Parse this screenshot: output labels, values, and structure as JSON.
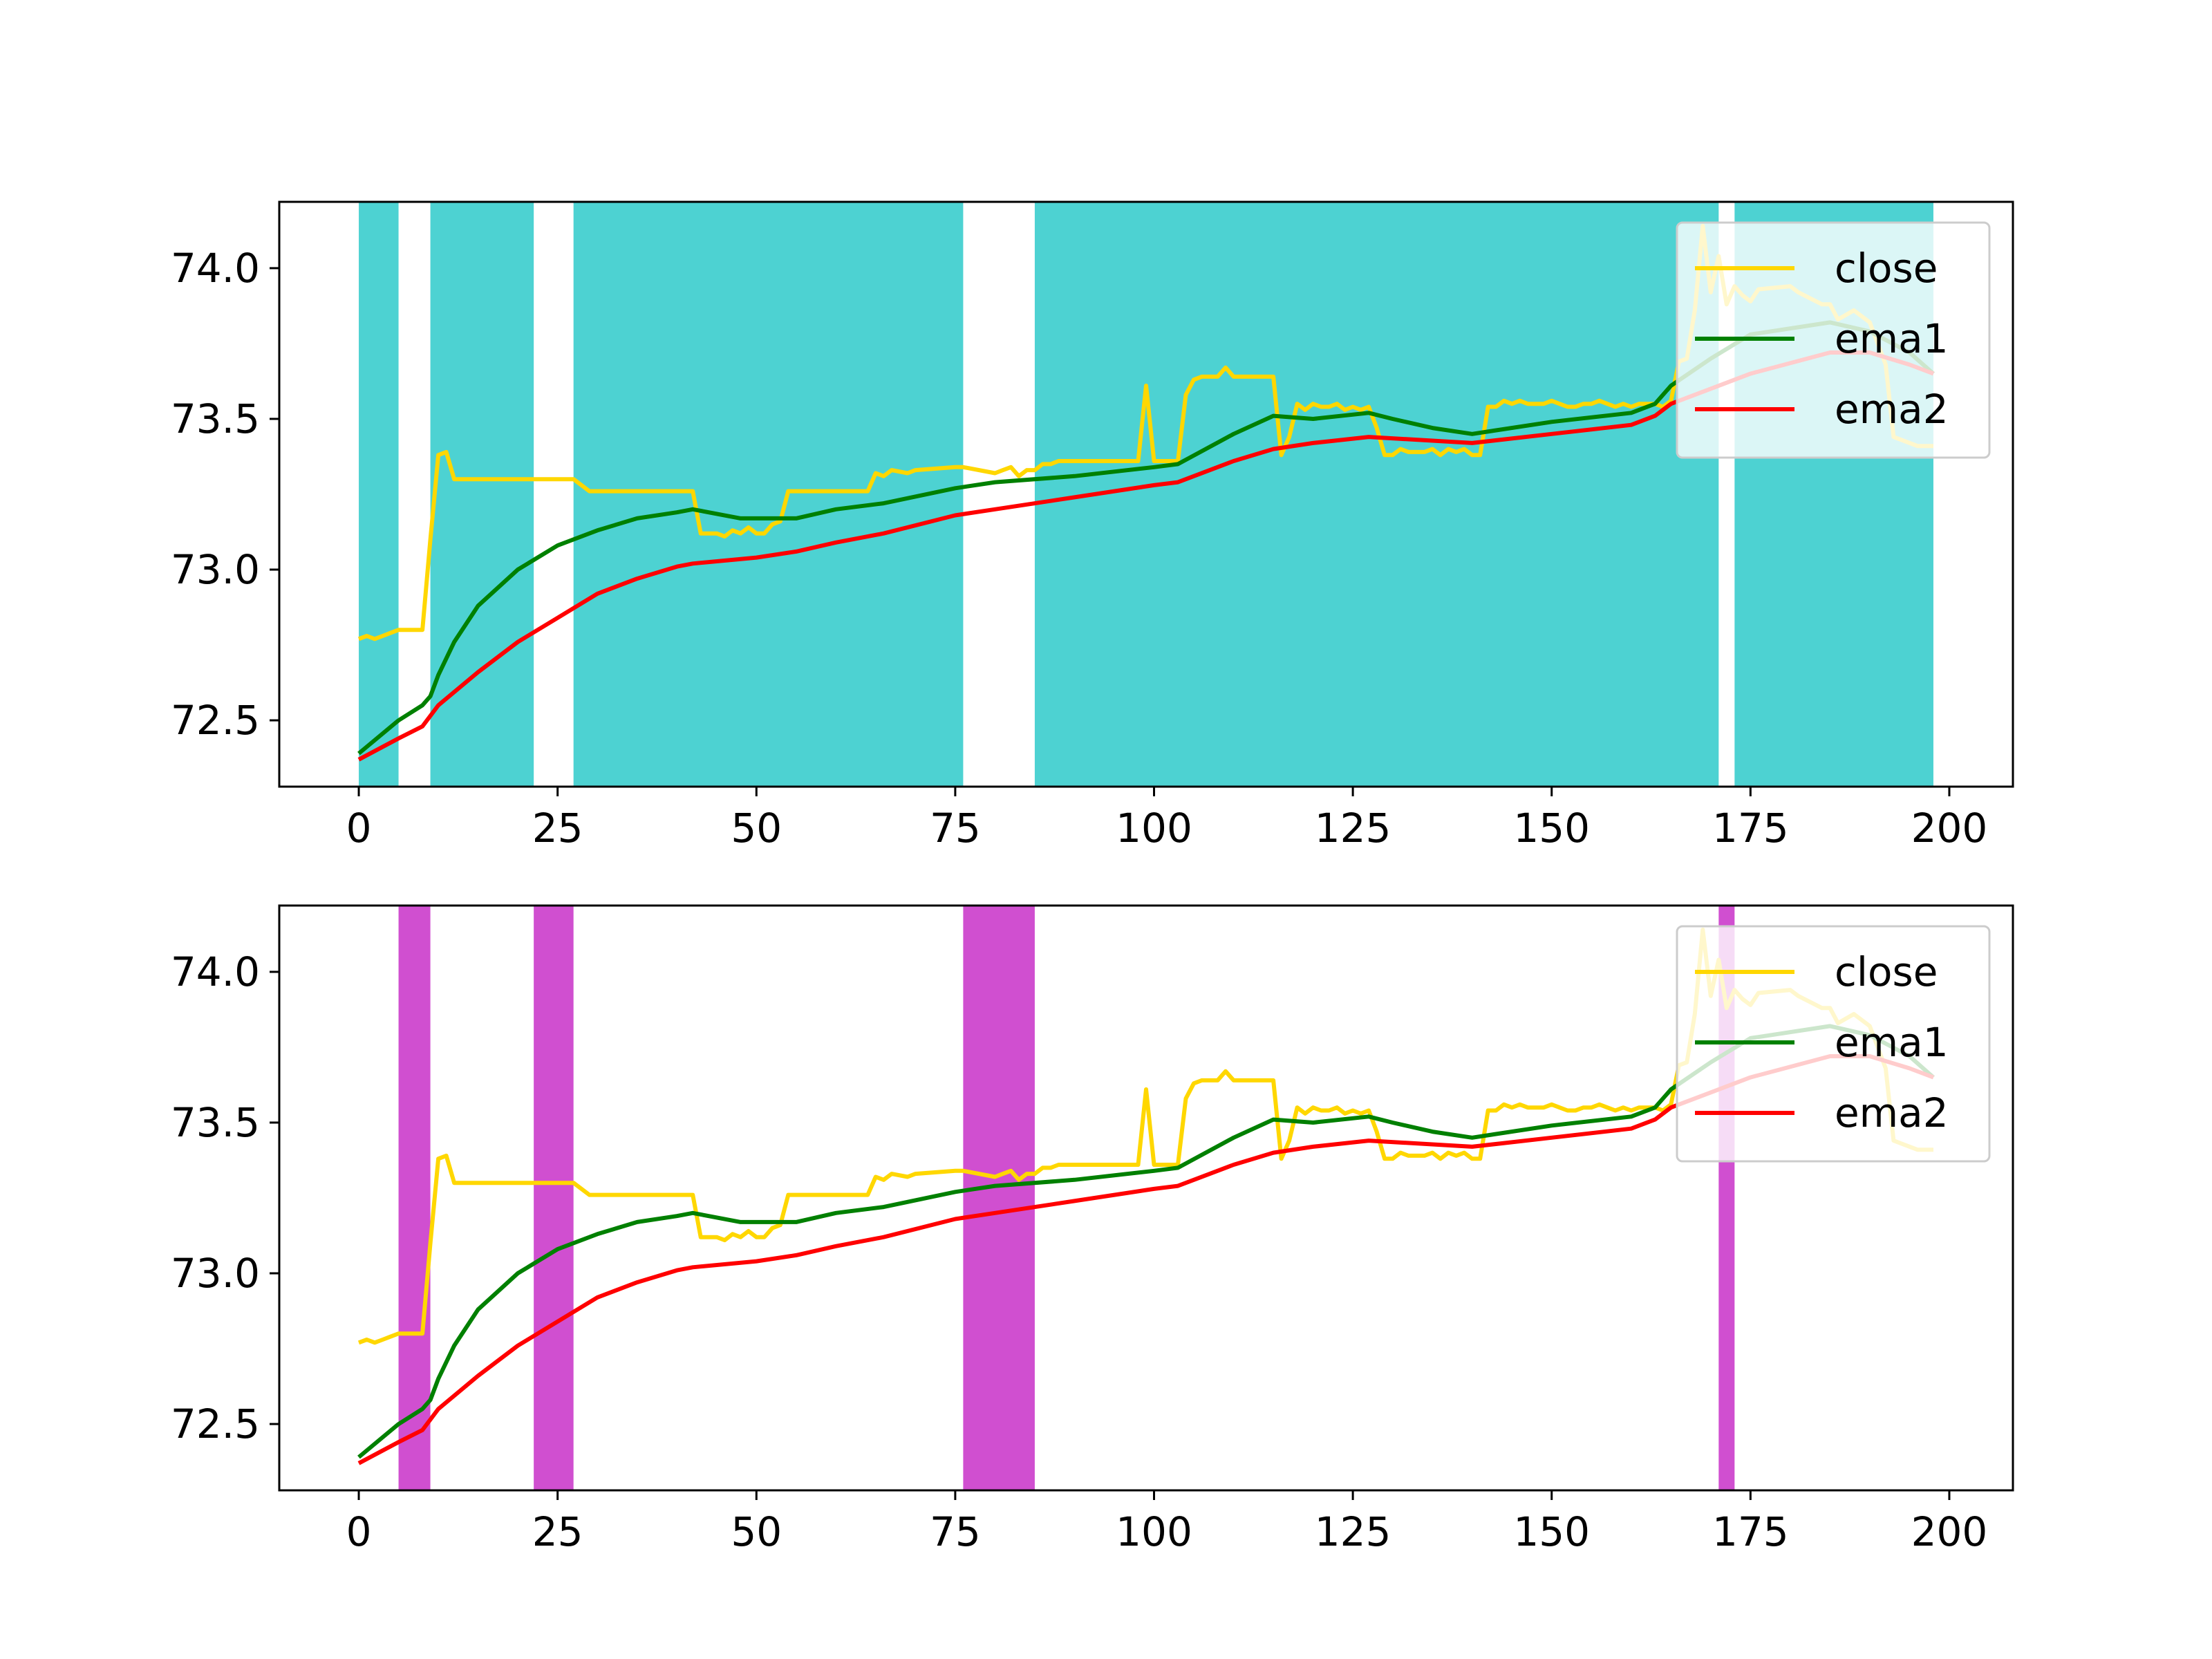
{
  "chart_data": [
    {
      "type": "line",
      "title": "",
      "xlabel": "",
      "ylabel": "",
      "xlim": [
        -10,
        208
      ],
      "ylim": [
        72.28,
        74.22
      ],
      "xticks": [
        0,
        25,
        50,
        75,
        100,
        125,
        150,
        175,
        200
      ],
      "yticks": [
        72.5,
        73.0,
        73.5,
        74.0
      ],
      "ytick_labels": [
        "72.5",
        "73.0",
        "73.5",
        "74.0"
      ],
      "grid": false,
      "legend_position": "top-right",
      "shading_color": "#4dd2d2",
      "shaded_ranges": [
        [
          0,
          5
        ],
        [
          9,
          22
        ],
        [
          27,
          76
        ],
        [
          85,
          171
        ],
        [
          173,
          198
        ]
      ],
      "series": [
        {
          "name": "close",
          "color": "#ffd700",
          "x": [
            0,
            1,
            2,
            3,
            4,
            5,
            6,
            7,
            8,
            9,
            10,
            11,
            12,
            22,
            27,
            29,
            42,
            43,
            45,
            46,
            47,
            48,
            49,
            50,
            51,
            52,
            53,
            54,
            55,
            64,
            65,
            66,
            67,
            69,
            70,
            75,
            76,
            80,
            81,
            82,
            83,
            84,
            85,
            86,
            87,
            88,
            98,
            99,
            100,
            103,
            104,
            105,
            106,
            107,
            108,
            109,
            110,
            111,
            115,
            116,
            117,
            118,
            119,
            120,
            121,
            122,
            123,
            124,
            125,
            126,
            127,
            128,
            129,
            130,
            131,
            132,
            133,
            134,
            135,
            136,
            137,
            138,
            139,
            140,
            141,
            142,
            143,
            144,
            145,
            146,
            147,
            148,
            149,
            150,
            151,
            152,
            153,
            154,
            155,
            156,
            157,
            158,
            159,
            160,
            161,
            162,
            163,
            164,
            165,
            166,
            167,
            168,
            169,
            170,
            171,
            172,
            173,
            174,
            175,
            176,
            180,
            181,
            184,
            185,
            186,
            188,
            190,
            192,
            193,
            196,
            198
          ],
          "y": [
            72.77,
            72.78,
            72.77,
            72.78,
            72.79,
            72.8,
            72.8,
            72.8,
            72.8,
            73.1,
            73.38,
            73.39,
            73.3,
            73.3,
            73.3,
            73.26,
            73.26,
            73.12,
            73.12,
            73.11,
            73.13,
            73.12,
            73.14,
            73.12,
            73.12,
            73.15,
            73.16,
            73.26,
            73.26,
            73.26,
            73.32,
            73.31,
            73.33,
            73.32,
            73.33,
            73.34,
            73.34,
            73.32,
            73.33,
            73.34,
            73.31,
            73.33,
            73.33,
            73.35,
            73.35,
            73.36,
            73.36,
            73.61,
            73.36,
            73.36,
            73.58,
            73.63,
            73.64,
            73.64,
            73.64,
            73.67,
            73.64,
            73.64,
            73.64,
            73.38,
            73.44,
            73.55,
            73.53,
            73.55,
            73.54,
            73.54,
            73.55,
            73.53,
            73.54,
            73.53,
            73.54,
            73.47,
            73.38,
            73.38,
            73.4,
            73.39,
            73.39,
            73.39,
            73.4,
            73.38,
            73.4,
            73.39,
            73.4,
            73.38,
            73.38,
            73.54,
            73.54,
            73.56,
            73.55,
            73.56,
            73.55,
            73.55,
            73.55,
            73.56,
            73.55,
            73.54,
            73.54,
            73.55,
            73.55,
            73.56,
            73.55,
            73.54,
            73.55,
            73.54,
            73.55,
            73.55,
            73.55,
            73.54,
            73.56,
            73.69,
            73.7,
            73.86,
            74.14,
            73.92,
            74.04,
            73.88,
            73.94,
            73.91,
            73.89,
            73.93,
            73.94,
            73.92,
            73.88,
            73.88,
            73.83,
            73.86,
            73.82,
            73.68,
            73.44,
            73.41,
            73.41
          ],
          "data_labels": []
        },
        {
          "name": "ema1",
          "color": "#008000",
          "x": [
            0,
            5,
            8,
            9,
            10,
            12,
            15,
            20,
            25,
            30,
            35,
            40,
            42,
            48,
            50,
            55,
            60,
            66,
            75,
            80,
            90,
            100,
            103,
            110,
            115,
            120,
            127,
            130,
            135,
            140,
            150,
            160,
            163,
            165,
            170,
            175,
            185,
            190,
            195,
            198
          ],
          "y": [
            72.39,
            72.5,
            72.55,
            72.58,
            72.65,
            72.76,
            72.88,
            73.0,
            73.08,
            73.13,
            73.17,
            73.19,
            73.2,
            73.17,
            73.17,
            73.17,
            73.2,
            73.22,
            73.27,
            73.29,
            73.31,
            73.34,
            73.35,
            73.45,
            73.51,
            73.5,
            73.52,
            73.5,
            73.47,
            73.45,
            73.49,
            73.52,
            73.55,
            73.61,
            73.7,
            73.78,
            73.82,
            73.79,
            73.72,
            73.65
          ],
          "data_labels": []
        },
        {
          "name": "ema2",
          "color": "#ff0000",
          "x": [
            0,
            5,
            8,
            10,
            15,
            20,
            25,
            30,
            35,
            40,
            42,
            50,
            55,
            60,
            66,
            75,
            80,
            90,
            100,
            103,
            110,
            115,
            120,
            127,
            140,
            150,
            160,
            163,
            165,
            170,
            175,
            185,
            190,
            195,
            198
          ],
          "y": [
            72.37,
            72.44,
            72.48,
            72.55,
            72.66,
            72.76,
            72.84,
            72.92,
            72.97,
            73.01,
            73.02,
            73.04,
            73.06,
            73.09,
            73.12,
            73.18,
            73.2,
            73.24,
            73.28,
            73.29,
            73.36,
            73.4,
            73.42,
            73.44,
            73.42,
            73.45,
            73.48,
            73.51,
            73.55,
            73.6,
            73.65,
            73.72,
            73.72,
            73.68,
            73.65
          ],
          "data_labels": []
        }
      ]
    },
    {
      "type": "line",
      "title": "",
      "xlabel": "",
      "ylabel": "",
      "xlim": [
        -10,
        208
      ],
      "ylim": [
        72.28,
        74.22
      ],
      "xticks": [
        0,
        25,
        50,
        75,
        100,
        125,
        150,
        175,
        200
      ],
      "yticks": [
        72.5,
        73.0,
        73.5,
        74.0
      ],
      "ytick_labels": [
        "72.5",
        "73.0",
        "73.5",
        "74.0"
      ],
      "grid": false,
      "legend_position": "top-right",
      "shading_color": "#d04fd0",
      "shaded_ranges": [
        [
          5,
          9
        ],
        [
          22,
          27
        ],
        [
          76,
          85
        ],
        [
          171,
          173
        ]
      ],
      "series": [
        {
          "name": "close",
          "color": "#ffd700",
          "x": [
            0,
            1,
            2,
            3,
            4,
            5,
            6,
            7,
            8,
            9,
            10,
            11,
            12,
            22,
            27,
            29,
            42,
            43,
            45,
            46,
            47,
            48,
            49,
            50,
            51,
            52,
            53,
            54,
            55,
            64,
            65,
            66,
            67,
            69,
            70,
            75,
            76,
            80,
            81,
            82,
            83,
            84,
            85,
            86,
            87,
            88,
            98,
            99,
            100,
            103,
            104,
            105,
            106,
            107,
            108,
            109,
            110,
            111,
            115,
            116,
            117,
            118,
            119,
            120,
            121,
            122,
            123,
            124,
            125,
            126,
            127,
            128,
            129,
            130,
            131,
            132,
            133,
            134,
            135,
            136,
            137,
            138,
            139,
            140,
            141,
            142,
            143,
            144,
            145,
            146,
            147,
            148,
            149,
            150,
            151,
            152,
            153,
            154,
            155,
            156,
            157,
            158,
            159,
            160,
            161,
            162,
            163,
            164,
            165,
            166,
            167,
            168,
            169,
            170,
            171,
            172,
            173,
            174,
            175,
            176,
            180,
            181,
            184,
            185,
            186,
            188,
            190,
            192,
            193,
            196,
            198
          ],
          "y": [
            72.77,
            72.78,
            72.77,
            72.78,
            72.79,
            72.8,
            72.8,
            72.8,
            72.8,
            73.1,
            73.38,
            73.39,
            73.3,
            73.3,
            73.3,
            73.26,
            73.26,
            73.12,
            73.12,
            73.11,
            73.13,
            73.12,
            73.14,
            73.12,
            73.12,
            73.15,
            73.16,
            73.26,
            73.26,
            73.26,
            73.32,
            73.31,
            73.33,
            73.32,
            73.33,
            73.34,
            73.34,
            73.32,
            73.33,
            73.34,
            73.31,
            73.33,
            73.33,
            73.35,
            73.35,
            73.36,
            73.36,
            73.61,
            73.36,
            73.36,
            73.58,
            73.63,
            73.64,
            73.64,
            73.64,
            73.67,
            73.64,
            73.64,
            73.64,
            73.38,
            73.44,
            73.55,
            73.53,
            73.55,
            73.54,
            73.54,
            73.55,
            73.53,
            73.54,
            73.53,
            73.54,
            73.47,
            73.38,
            73.38,
            73.4,
            73.39,
            73.39,
            73.39,
            73.4,
            73.38,
            73.4,
            73.39,
            73.4,
            73.38,
            73.38,
            73.54,
            73.54,
            73.56,
            73.55,
            73.56,
            73.55,
            73.55,
            73.55,
            73.56,
            73.55,
            73.54,
            73.54,
            73.55,
            73.55,
            73.56,
            73.55,
            73.54,
            73.55,
            73.54,
            73.55,
            73.55,
            73.55,
            73.54,
            73.56,
            73.69,
            73.7,
            73.86,
            74.14,
            73.92,
            74.04,
            73.88,
            73.94,
            73.91,
            73.89,
            73.93,
            73.94,
            73.92,
            73.88,
            73.88,
            73.83,
            73.86,
            73.82,
            73.68,
            73.44,
            73.41,
            73.41
          ],
          "data_labels": []
        },
        {
          "name": "ema1",
          "color": "#008000",
          "x": [
            0,
            5,
            8,
            9,
            10,
            12,
            15,
            20,
            25,
            30,
            35,
            40,
            42,
            48,
            50,
            55,
            60,
            66,
            75,
            80,
            90,
            100,
            103,
            110,
            115,
            120,
            127,
            130,
            135,
            140,
            150,
            160,
            163,
            165,
            170,
            175,
            185,
            190,
            195,
            198
          ],
          "y": [
            72.39,
            72.5,
            72.55,
            72.58,
            72.65,
            72.76,
            72.88,
            73.0,
            73.08,
            73.13,
            73.17,
            73.19,
            73.2,
            73.17,
            73.17,
            73.17,
            73.2,
            73.22,
            73.27,
            73.29,
            73.31,
            73.34,
            73.35,
            73.45,
            73.51,
            73.5,
            73.52,
            73.5,
            73.47,
            73.45,
            73.49,
            73.52,
            73.55,
            73.61,
            73.7,
            73.78,
            73.82,
            73.79,
            73.72,
            73.65
          ],
          "data_labels": []
        },
        {
          "name": "ema2",
          "color": "#ff0000",
          "x": [
            0,
            5,
            8,
            10,
            15,
            20,
            25,
            30,
            35,
            40,
            42,
            50,
            55,
            60,
            66,
            75,
            80,
            90,
            100,
            103,
            110,
            115,
            120,
            127,
            140,
            150,
            160,
            163,
            165,
            170,
            175,
            185,
            190,
            195,
            198
          ],
          "y": [
            72.37,
            72.44,
            72.48,
            72.55,
            72.66,
            72.76,
            72.84,
            72.92,
            72.97,
            73.01,
            73.02,
            73.04,
            73.06,
            73.09,
            73.12,
            73.18,
            73.2,
            73.24,
            73.28,
            73.29,
            73.36,
            73.4,
            73.42,
            73.44,
            73.42,
            73.45,
            73.48,
            73.51,
            73.55,
            73.6,
            73.65,
            73.72,
            73.72,
            73.68,
            73.65
          ],
          "data_labels": []
        }
      ]
    }
  ]
}
